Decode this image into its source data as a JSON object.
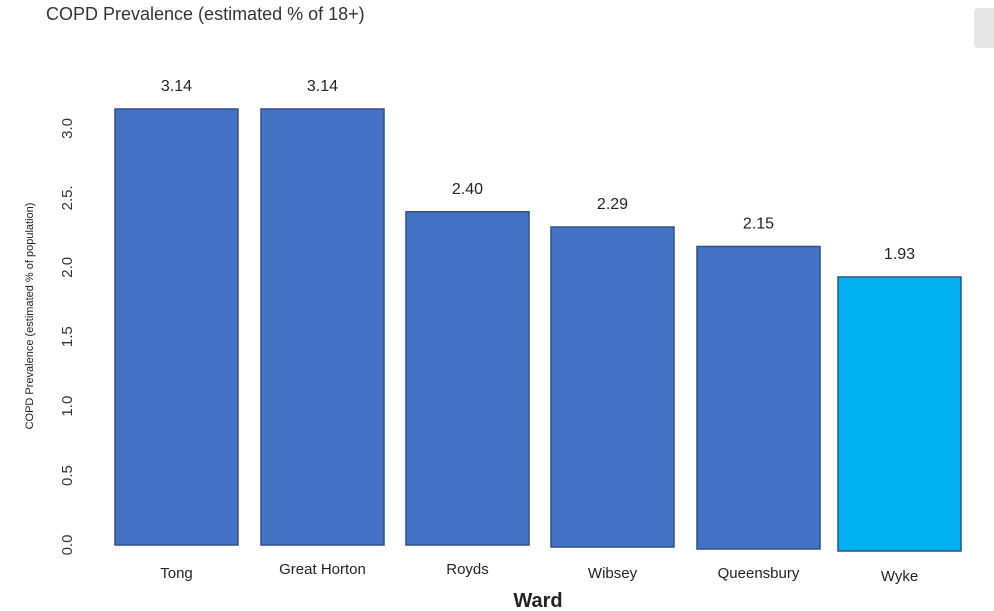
{
  "chart_data": {
    "type": "bar",
    "title": "COPD Prevalence (estimated % of 18+)",
    "xlabel": "Ward",
    "ylabel": "COPD Prevalence (estimated % of population)",
    "categories": [
      "Tong",
      "Great Horton",
      "Royds",
      "Wibsey",
      "Queensbury",
      "Wyke"
    ],
    "values": [
      3.14,
      3.14,
      2.4,
      2.29,
      2.15,
      1.93
    ],
    "value_labels": [
      "3.14",
      "3.14",
      "2.40",
      "2.29",
      "2.15",
      "1.93"
    ],
    "colors": [
      "#4472c4",
      "#4472c4",
      "#4472c4",
      "#4472c4",
      "#4472c4",
      "#00b0f0"
    ],
    "bar_edge_color": "#2f4f8f",
    "yticks": [
      0.0,
      0.5,
      1.0,
      1.5,
      2.0,
      2.5,
      3.0
    ],
    "ytick_labels": [
      "0.0",
      "0.5",
      "1.0",
      "1.5",
      "2.0",
      "2.5.",
      "3.0"
    ],
    "ylim": [
      0,
      3.14
    ],
    "grid": false,
    "legend": "none"
  }
}
